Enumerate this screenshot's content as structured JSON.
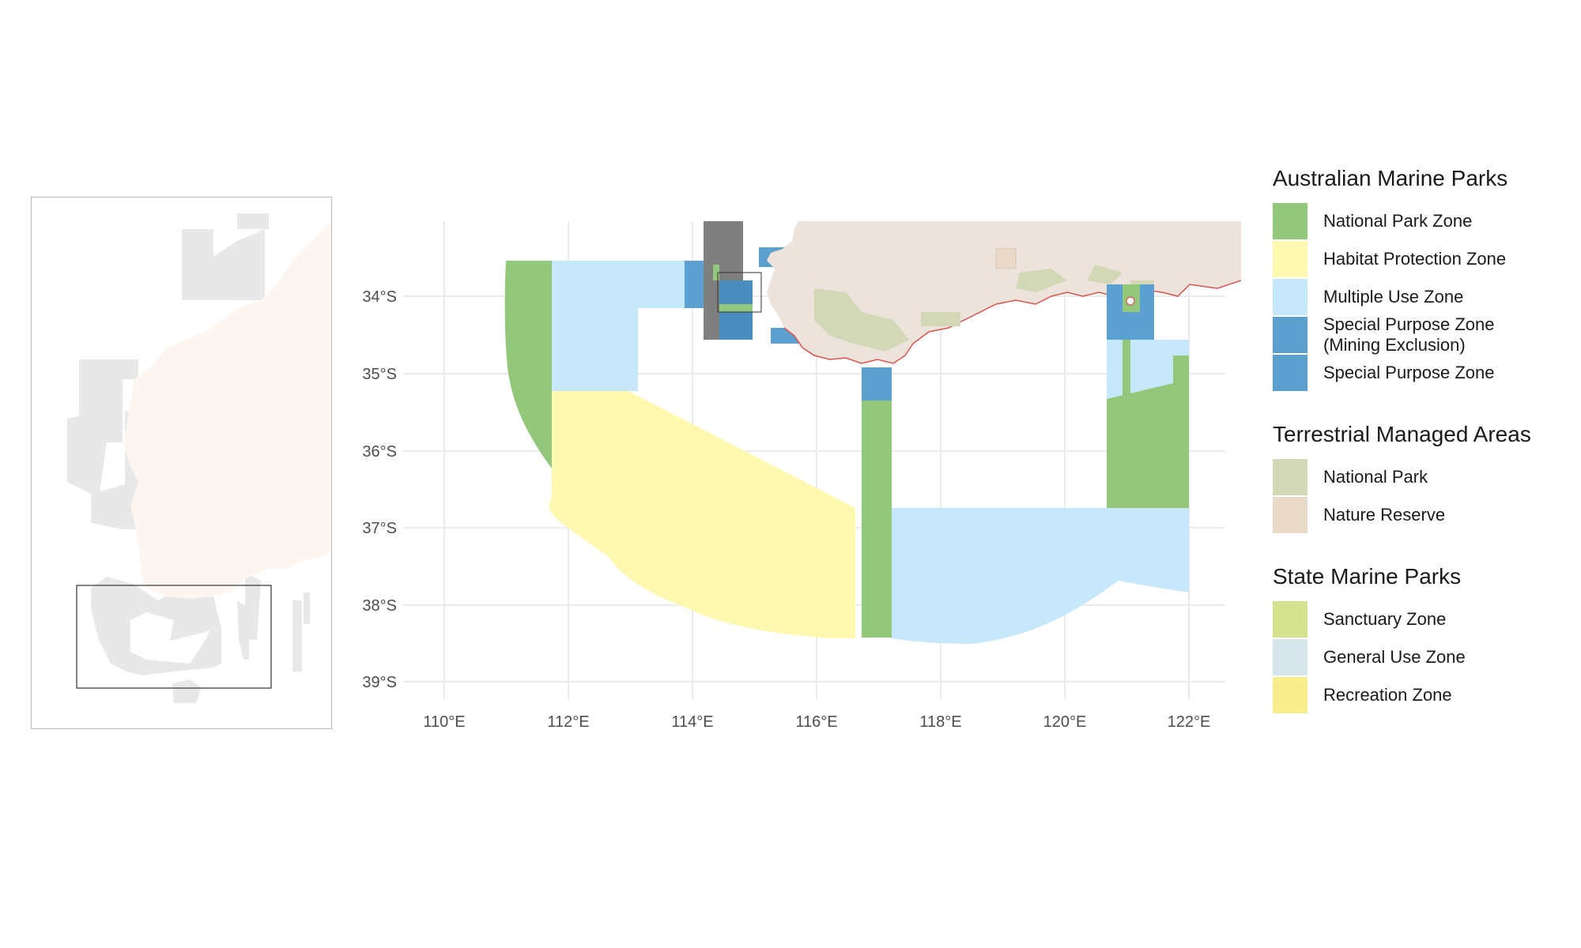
{
  "map": {
    "x_ticks": [
      "110°E",
      "112°E",
      "114°E",
      "116°E",
      "118°E",
      "120°E",
      "122°E"
    ],
    "y_ticks": [
      "34°S",
      "35°S",
      "36°S",
      "37°S",
      "38°S",
      "39°S"
    ]
  },
  "colors": {
    "national_park_zone": "#93c77b",
    "habitat_protection_zone": "#fff8b0",
    "multiple_use_zone": "#c7e8fb",
    "special_purpose_mining": "#5ba0ce",
    "special_purpose": "#5ba0ce",
    "terrestrial_national_park": "#d2d8b6",
    "nature_reserve": "#e8d9c8",
    "sanctuary_zone": "#d4e290",
    "general_use_zone": "#d6e6ea",
    "recreation_zone": "#f8ed8c",
    "land": "#ece3dc",
    "coastline": "#d9534f"
  },
  "legend": {
    "groups": [
      {
        "title": "Australian Marine Parks",
        "items": [
          {
            "label": "National Park Zone",
            "color": "#93c77b"
          },
          {
            "label": "Habitat Protection Zone",
            "color": "#fff8b0"
          },
          {
            "label": "Multiple Use Zone",
            "color": "#c7e8fb"
          },
          {
            "label": "Special Purpose Zone\n(Mining Exclusion)",
            "color": "#5ba0ce"
          },
          {
            "label": "Special Purpose Zone",
            "color": "#5ba0ce"
          }
        ]
      },
      {
        "title": "Terrestrial Managed Areas",
        "items": [
          {
            "label": "National Park",
            "color": "#d2d8b6"
          },
          {
            "label": "Nature Reserve",
            "color": "#e8d9c8"
          }
        ]
      },
      {
        "title": "State Marine Parks",
        "items": [
          {
            "label": "Sanctuary Zone",
            "color": "#d4e290"
          },
          {
            "label": "General Use Zone",
            "color": "#d6e6ea"
          },
          {
            "label": "Recreation Zone",
            "color": "#f8ed8c"
          }
        ]
      }
    ]
  }
}
